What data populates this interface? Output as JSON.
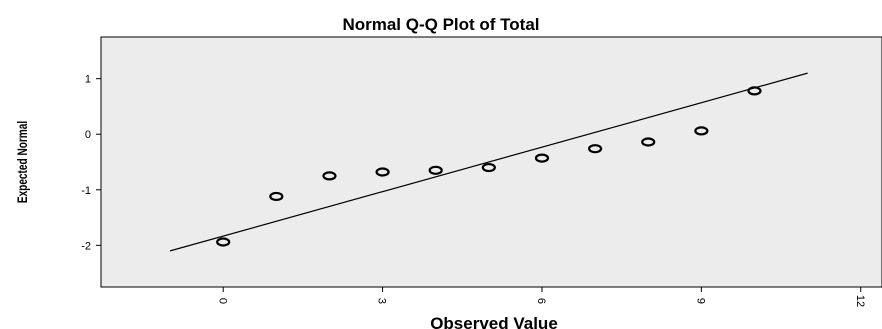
{
  "chart_data": {
    "type": "scatter",
    "title": "Normal Q-Q Plot of Total",
    "xlabel": "Observed Value",
    "ylabel": "Expected Normal",
    "xlim": [
      -2.3,
      12.4
    ],
    "ylim": [
      -2.75,
      1.75
    ],
    "xticks": [
      "0",
      "3",
      "6",
      "9",
      "12"
    ],
    "yticks": [
      "1",
      "0",
      "-1",
      "-2"
    ],
    "grid": false,
    "plot_background": "#ececec",
    "points": [
      {
        "x": 0,
        "y": -1.94
      },
      {
        "x": 1,
        "y": -1.12
      },
      {
        "x": 2,
        "y": -0.75
      },
      {
        "x": 3,
        "y": -0.68
      },
      {
        "x": 4,
        "y": -0.65
      },
      {
        "x": 5,
        "y": -0.6
      },
      {
        "x": 6,
        "y": -0.43
      },
      {
        "x": 7,
        "y": -0.26
      },
      {
        "x": 8,
        "y": -0.14
      },
      {
        "x": 9,
        "y": 0.06
      },
      {
        "x": 10,
        "y": 0.78
      }
    ],
    "reference_line": {
      "x": [
        -1,
        11
      ],
      "y": [
        -2.1,
        1.1
      ]
    }
  }
}
